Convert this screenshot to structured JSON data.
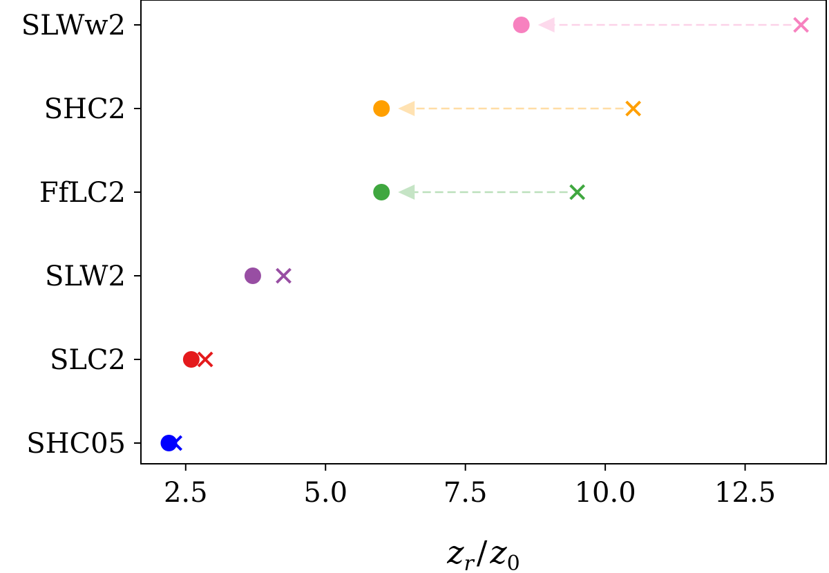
{
  "chart_data": {
    "type": "scatter",
    "title": "",
    "xlabel_parts": {
      "num": "z",
      "num_sub": "r",
      "sep": "/",
      "den": "z",
      "den_sub": "0"
    },
    "ylabel": "",
    "xlim": [
      1.7,
      13.95
    ],
    "xticks": [
      2.5,
      5.0,
      7.5,
      10.0,
      12.5
    ],
    "xtick_labels": [
      "2.5",
      "5.0",
      "7.5",
      "10.0",
      "12.5"
    ],
    "grid": false,
    "categories": [
      "SLWw2",
      "SHC2",
      "FfLC2",
      "SLW2",
      "SLC2",
      "SHC05"
    ],
    "series": [
      {
        "category": "SLWw2",
        "circle_x": 8.5,
        "cross_x": 13.5,
        "arrow": true,
        "color": "#f781bf"
      },
      {
        "category": "SHC2",
        "circle_x": 6.0,
        "cross_x": 10.5,
        "arrow": true,
        "color": "#ff9f00"
      },
      {
        "category": "FfLC2",
        "circle_x": 6.0,
        "cross_x": 9.5,
        "arrow": true,
        "color": "#3fa73f"
      },
      {
        "category": "SLW2",
        "circle_x": 3.7,
        "cross_x": 4.25,
        "arrow": false,
        "color": "#984ea3"
      },
      {
        "category": "SLC2",
        "circle_x": 2.6,
        "cross_x": 2.85,
        "arrow": false,
        "color": "#e41a1c"
      },
      {
        "category": "SHC05",
        "circle_x": 2.2,
        "cross_x": 2.3,
        "arrow": false,
        "color": "#0000ff"
      }
    ]
  }
}
